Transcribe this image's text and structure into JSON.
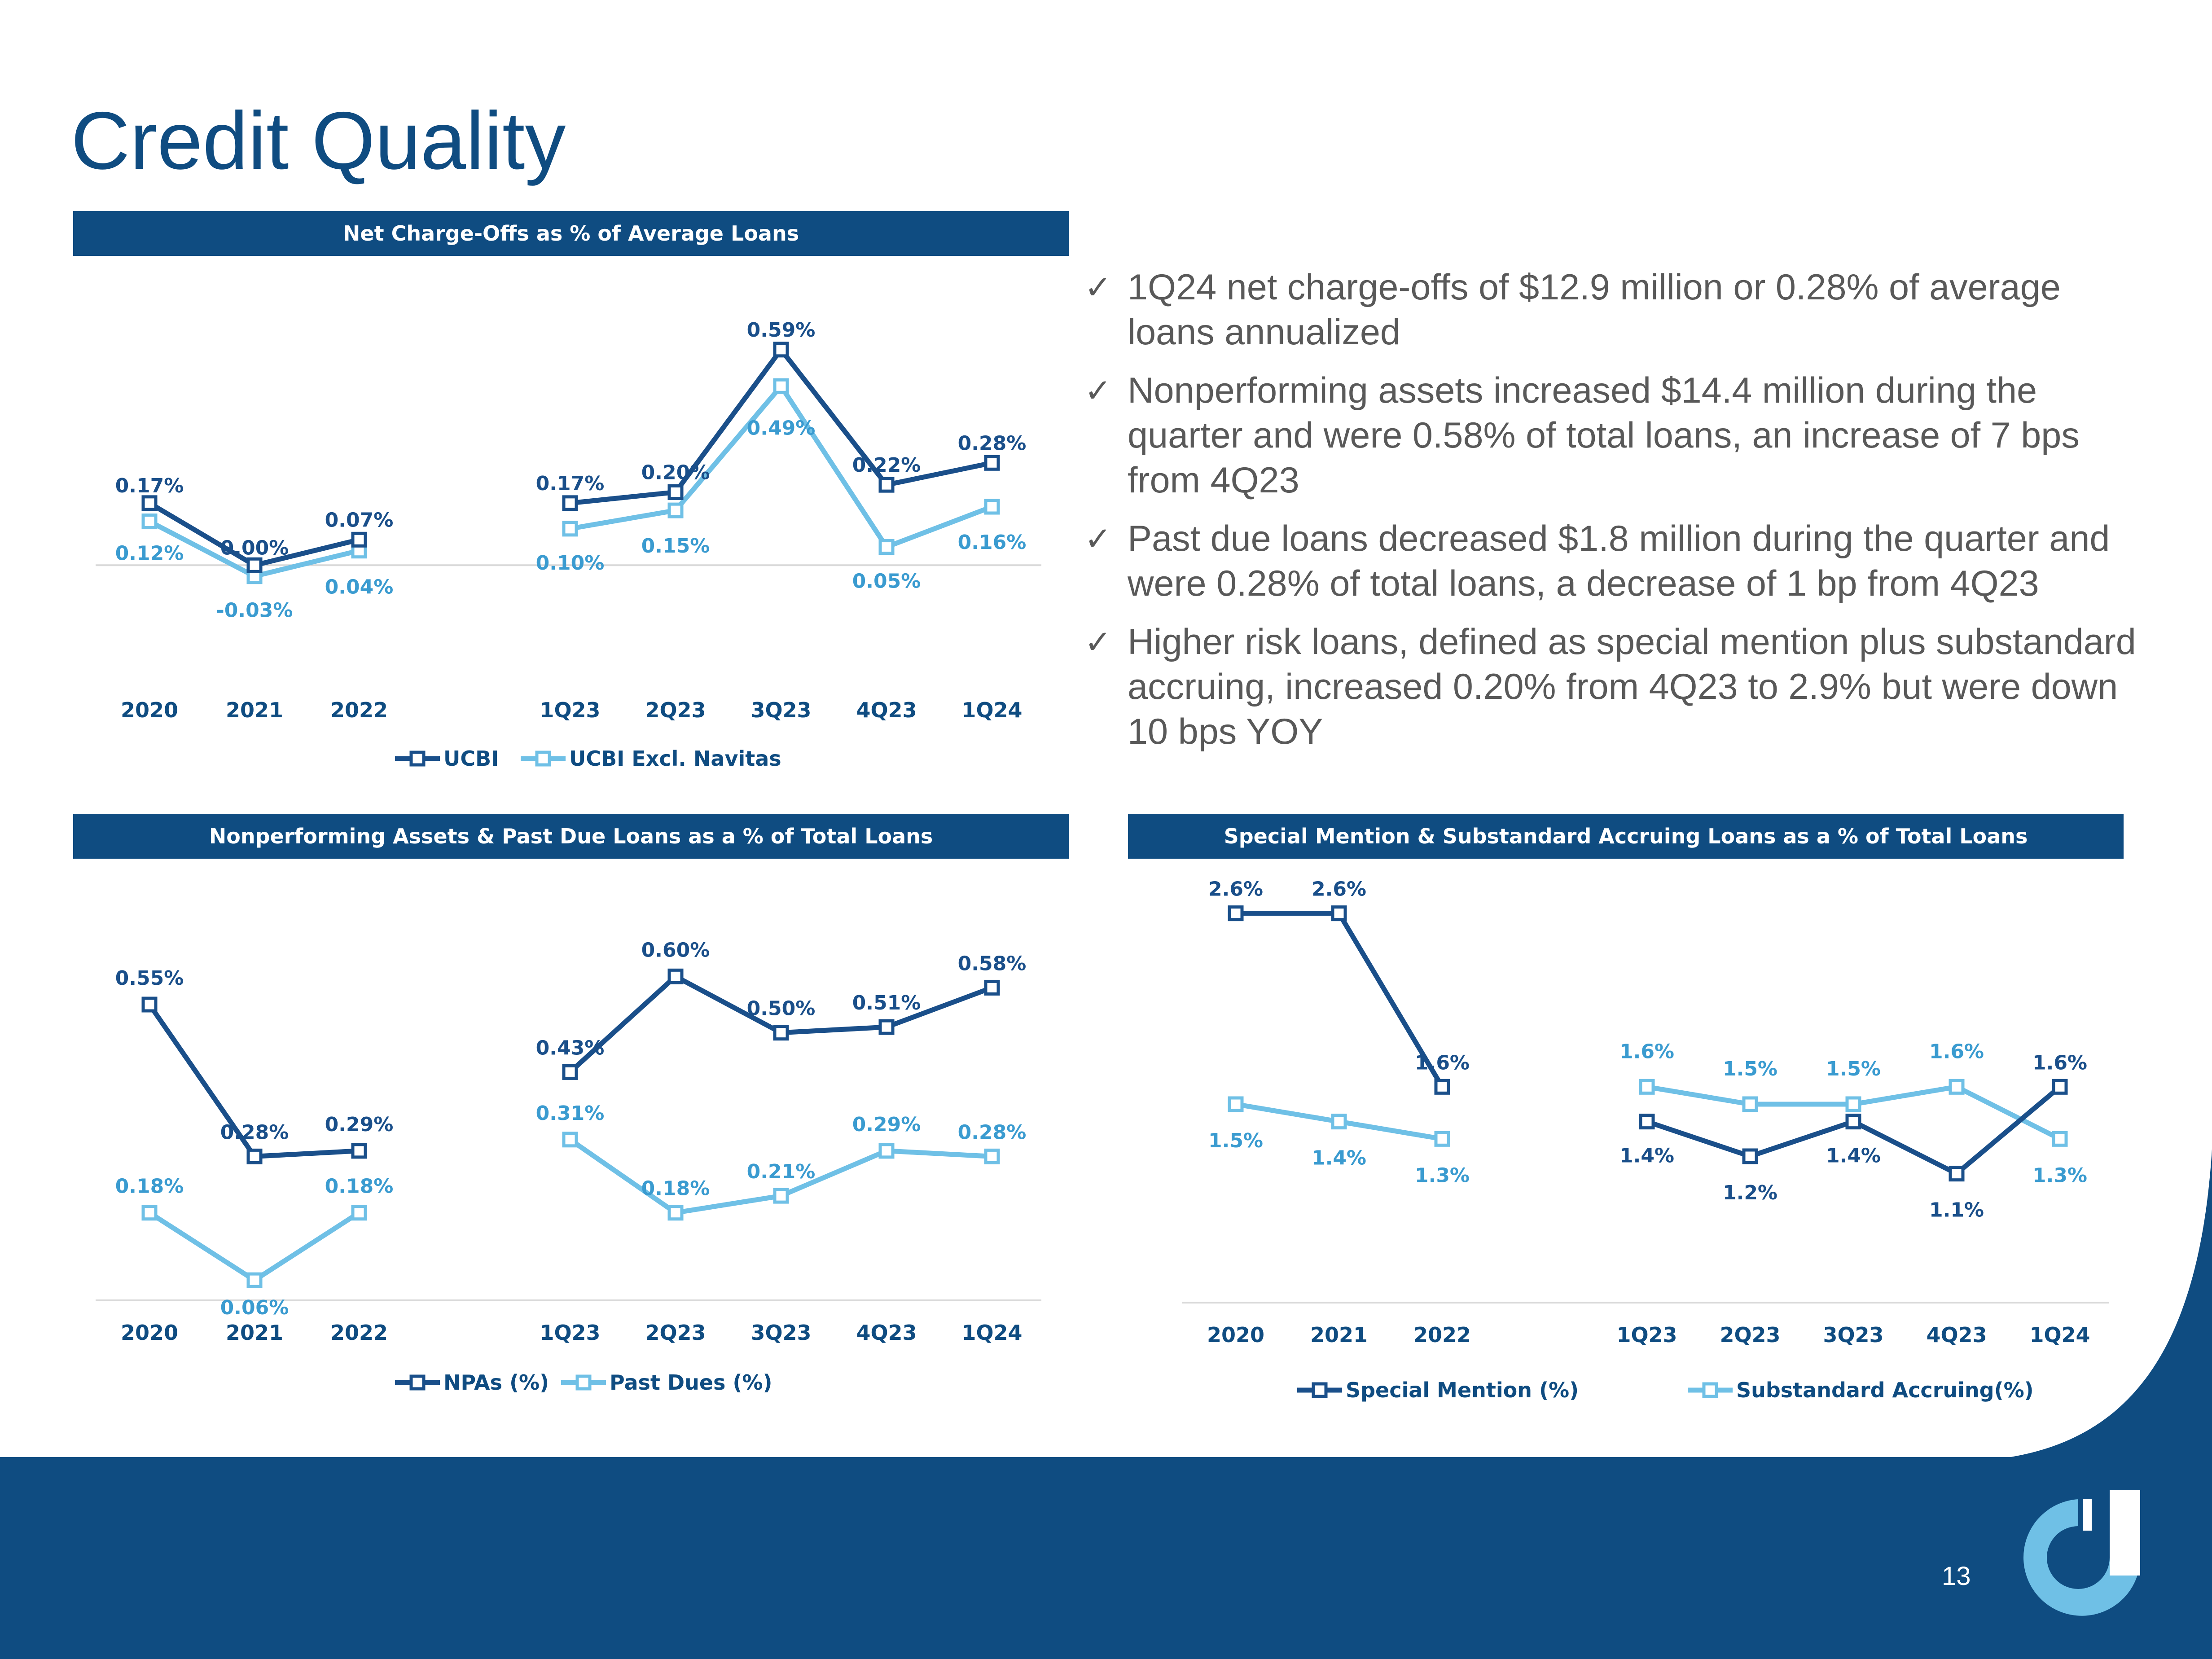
{
  "title": "Credit Quality",
  "page_number": "13",
  "colors": {
    "brand_dark": "#0f4c81",
    "series_dark": "#1a4f8a",
    "series_light": "#6fc0e6",
    "label_light": "#3a9bd0",
    "text_gray": "#595959"
  },
  "bullets": [
    "1Q24 net charge-offs of $12.9 million or 0.28% of average loans annualized",
    "Nonperforming assets increased $14.4 million during the quarter and were 0.58% of total loans, an increase of 7 bps from 4Q23",
    "Past due loans decreased $1.8 million during the quarter and were 0.28% of total loans, a decrease of 1 bp from 4Q23",
    "Higher risk loans, defined as special mention plus substandard accruing, increased 0.20% from 4Q23 to 2.9% but were down 10 bps YOY"
  ],
  "chart_data": [
    {
      "id": "nco",
      "type": "line",
      "title": "Net Charge-Offs as % of Average Loans",
      "categories": [
        "2020",
        "2021",
        "2022",
        "1Q23",
        "2Q23",
        "3Q23",
        "4Q23",
        "1Q24"
      ],
      "segments": [
        [
          0,
          3
        ],
        [
          3,
          8
        ]
      ],
      "ylim": [
        -0.05,
        0.65
      ],
      "zero_line": true,
      "series": [
        {
          "name": "UCBI",
          "values": [
            0.17,
            0.0,
            0.07,
            0.17,
            0.2,
            0.59,
            0.22,
            0.28
          ],
          "labels": [
            "0.17%",
            "0.00%",
            "0.07%",
            "0.17%",
            "0.20%",
            "0.59%",
            "0.22%",
            "0.28%"
          ],
          "style": "dark"
        },
        {
          "name": "UCBI Excl. Navitas",
          "values": [
            0.12,
            -0.03,
            0.04,
            0.1,
            0.15,
            0.49,
            0.05,
            0.16
          ],
          "labels": [
            "0.12%",
            "-0.03%",
            "0.04%",
            "0.10%",
            "0.15%",
            "0.49%",
            "0.05%",
            "0.16%"
          ],
          "style": "light"
        }
      ]
    },
    {
      "id": "npa",
      "type": "line",
      "title": "Nonperforming Assets & Past Due Loans as a % of Total Loans",
      "categories": [
        "2020",
        "2021",
        "2022",
        "1Q23",
        "2Q23",
        "3Q23",
        "4Q23",
        "1Q24"
      ],
      "segments": [
        [
          0,
          3
        ],
        [
          3,
          8
        ]
      ],
      "ylim": [
        -0.05,
        0.7
      ],
      "zero_line": false,
      "series": [
        {
          "name": "NPAs (%)",
          "values": [
            0.55,
            0.28,
            0.29,
            0.43,
            0.6,
            0.5,
            0.51,
            0.58
          ],
          "labels": [
            "0.55%",
            "0.28%",
            "0.29%",
            "0.43%",
            "0.60%",
            "0.50%",
            "0.51%",
            "0.58%"
          ],
          "style": "dark"
        },
        {
          "name": "Past Dues (%)",
          "values": [
            0.18,
            0.06,
            0.18,
            0.31,
            0.18,
            0.21,
            0.29,
            0.28
          ],
          "labels": [
            "0.18%",
            "0.06%",
            "0.18%",
            "0.31%",
            "0.18%",
            "0.21%",
            "0.29%",
            "0.28%"
          ],
          "style": "light"
        }
      ]
    },
    {
      "id": "sm",
      "type": "line",
      "title": "Special Mention & Substandard Accruing Loans as a % of Total Loans",
      "categories": [
        "2020",
        "2021",
        "2022",
        "1Q23",
        "2Q23",
        "3Q23",
        "4Q23",
        "1Q24"
      ],
      "segments": [
        [
          0,
          3
        ],
        [
          3,
          8
        ]
      ],
      "ylim": [
        0.0,
        3.0
      ],
      "zero_line": false,
      "series": [
        {
          "name": "Special Mention (%)",
          "values": [
            2.6,
            2.6,
            1.6,
            1.4,
            1.2,
            1.4,
            1.1,
            1.6
          ],
          "labels": [
            "2.6%",
            "2.6%",
            "1.6%",
            "1.4%",
            "1.2%",
            "1.4%",
            "1.1%",
            "1.6%"
          ],
          "style": "dark"
        },
        {
          "name": "Substandard Accruing(%)",
          "values": [
            1.5,
            1.4,
            1.3,
            1.6,
            1.5,
            1.5,
            1.6,
            1.3
          ],
          "labels": [
            "1.5%",
            "1.4%",
            "1.3%",
            "1.6%",
            "1.5%",
            "1.5%",
            "1.6%",
            "1.3%"
          ],
          "style": "light"
        }
      ]
    }
  ]
}
